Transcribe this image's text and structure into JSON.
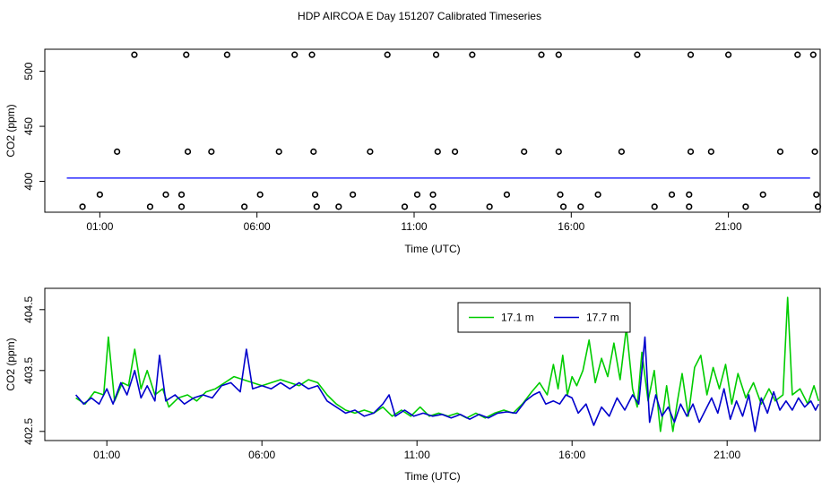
{
  "title": "HDP AIRCOA E  Day 151207  Calibrated Timeseries",
  "chart_data": [
    {
      "type": "scatter",
      "xlabel": "Time (UTC)",
      "ylabel": "CO2 (ppm)",
      "x_unit": "hours UTC",
      "xlim": [
        -0.75,
        23.92
      ],
      "ylim": [
        372,
        520
      ],
      "x_ticks": [
        {
          "value": 1,
          "label": "01:00"
        },
        {
          "value": 6,
          "label": "06:00"
        },
        {
          "value": 11,
          "label": "11:00"
        },
        {
          "value": 16,
          "label": "16:00"
        },
        {
          "value": 21,
          "label": "21:00"
        }
      ],
      "y_ticks": [
        {
          "value": 400,
          "label": "400"
        },
        {
          "value": 450,
          "label": "450"
        },
        {
          "value": 500,
          "label": "500"
        }
      ],
      "series_color": "#0000ff",
      "series_line": {
        "x_start": -0.05,
        "x_end": 23.6,
        "value": 403
      },
      "calibration_points": [
        [
          0.45,
          377
        ],
        [
          1.0,
          388
        ],
        [
          1.55,
          427
        ],
        [
          2.1,
          515
        ],
        [
          2.6,
          377
        ],
        [
          3.1,
          388
        ],
        [
          3.6,
          377
        ],
        [
          3.6,
          388
        ],
        [
          3.75,
          515
        ],
        [
          3.8,
          427
        ],
        [
          4.55,
          427
        ],
        [
          5.05,
          515
        ],
        [
          5.6,
          377
        ],
        [
          6.1,
          388
        ],
        [
          6.7,
          427
        ],
        [
          7.2,
          515
        ],
        [
          7.75,
          515
        ],
        [
          7.8,
          427
        ],
        [
          7.85,
          388
        ],
        [
          7.9,
          377
        ],
        [
          8.6,
          377
        ],
        [
          9.05,
          388
        ],
        [
          9.6,
          427
        ],
        [
          10.15,
          515
        ],
        [
          10.7,
          377
        ],
        [
          11.1,
          388
        ],
        [
          11.6,
          388
        ],
        [
          11.6,
          377
        ],
        [
          11.7,
          515
        ],
        [
          11.75,
          427
        ],
        [
          12.3,
          427
        ],
        [
          12.85,
          515
        ],
        [
          13.4,
          377
        ],
        [
          13.95,
          388
        ],
        [
          14.5,
          427
        ],
        [
          15.05,
          515
        ],
        [
          15.6,
          515
        ],
        [
          15.6,
          427
        ],
        [
          15.65,
          388
        ],
        [
          15.75,
          377
        ],
        [
          16.3,
          377
        ],
        [
          16.85,
          388
        ],
        [
          17.6,
          427
        ],
        [
          18.1,
          515
        ],
        [
          18.65,
          377
        ],
        [
          19.2,
          388
        ],
        [
          19.75,
          388
        ],
        [
          19.75,
          377
        ],
        [
          19.8,
          515
        ],
        [
          19.8,
          427
        ],
        [
          20.45,
          427
        ],
        [
          21.0,
          515
        ],
        [
          21.55,
          377
        ],
        [
          22.1,
          388
        ],
        [
          22.65,
          427
        ],
        [
          23.2,
          515
        ],
        [
          23.7,
          515
        ],
        [
          23.75,
          427
        ],
        [
          23.8,
          388
        ],
        [
          23.85,
          377
        ]
      ]
    },
    {
      "type": "line",
      "xlabel": "Time (UTC)",
      "ylabel": "CO2 (ppm)",
      "x_unit": "hours UTC",
      "xlim": [
        -1.0,
        24.0
      ],
      "ylim": [
        402.35,
        404.85
      ],
      "x_ticks": [
        {
          "value": 1,
          "label": "01:00"
        },
        {
          "value": 6,
          "label": "06:00"
        },
        {
          "value": 11,
          "label": "11:00"
        },
        {
          "value": 16,
          "label": "16:00"
        },
        {
          "value": 21,
          "label": "21:00"
        }
      ],
      "y_ticks": [
        {
          "value": 402.5,
          "label": "402.5"
        },
        {
          "value": 403.5,
          "label": "403.5"
        },
        {
          "value": 404.5,
          "label": "404.5"
        }
      ],
      "legend_position": "top-center",
      "series": [
        {
          "name": "17.1 m",
          "color": "#00cc00",
          "points": [
            [
              0.0,
              403.05
            ],
            [
              0.3,
              402.95
            ],
            [
              0.6,
              403.15
            ],
            [
              0.9,
              403.1
            ],
            [
              1.05,
              404.05
            ],
            [
              1.25,
              403.0
            ],
            [
              1.5,
              403.3
            ],
            [
              1.7,
              403.25
            ],
            [
              1.9,
              403.85
            ],
            [
              2.1,
              403.2
            ],
            [
              2.3,
              403.5
            ],
            [
              2.55,
              403.1
            ],
            [
              2.8,
              403.2
            ],
            [
              3.0,
              402.9
            ],
            [
              3.3,
              403.05
            ],
            [
              3.6,
              403.1
            ],
            [
              3.9,
              403.0
            ],
            [
              4.2,
              403.15
            ],
            [
              4.5,
              403.2
            ],
            [
              4.8,
              403.3
            ],
            [
              5.1,
              403.4
            ],
            [
              5.4,
              403.35
            ],
            [
              5.7,
              403.3
            ],
            [
              6.0,
              403.25
            ],
            [
              6.3,
              403.3
            ],
            [
              6.6,
              403.35
            ],
            [
              6.9,
              403.3
            ],
            [
              7.2,
              403.25
            ],
            [
              7.5,
              403.35
            ],
            [
              7.8,
              403.3
            ],
            [
              8.1,
              403.1
            ],
            [
              8.4,
              402.95
            ],
            [
              8.7,
              402.85
            ],
            [
              9.0,
              402.8
            ],
            [
              9.3,
              402.85
            ],
            [
              9.6,
              402.8
            ],
            [
              9.9,
              402.9
            ],
            [
              10.2,
              402.75
            ],
            [
              10.5,
              402.85
            ],
            [
              10.8,
              402.75
            ],
            [
              11.1,
              402.9
            ],
            [
              11.4,
              402.75
            ],
            [
              11.7,
              402.8
            ],
            [
              12.0,
              402.75
            ],
            [
              12.3,
              402.8
            ],
            [
              12.6,
              402.72
            ],
            [
              12.9,
              402.8
            ],
            [
              13.2,
              402.72
            ],
            [
              13.5,
              402.8
            ],
            [
              13.8,
              402.85
            ],
            [
              14.1,
              402.8
            ],
            [
              14.4,
              402.95
            ],
            [
              14.7,
              403.15
            ],
            [
              14.95,
              403.3
            ],
            [
              15.2,
              403.1
            ],
            [
              15.4,
              403.6
            ],
            [
              15.55,
              403.2
            ],
            [
              15.7,
              403.75
            ],
            [
              15.85,
              403.1
            ],
            [
              16.0,
              403.4
            ],
            [
              16.15,
              403.25
            ],
            [
              16.35,
              403.5
            ],
            [
              16.55,
              404.0
            ],
            [
              16.75,
              403.3
            ],
            [
              16.95,
              403.7
            ],
            [
              17.15,
              403.4
            ],
            [
              17.35,
              403.95
            ],
            [
              17.55,
              403.35
            ],
            [
              17.75,
              404.2
            ],
            [
              17.95,
              403.2
            ],
            [
              18.1,
              402.9
            ],
            [
              18.25,
              403.8
            ],
            [
              18.45,
              403.0
            ],
            [
              18.65,
              403.5
            ],
            [
              18.85,
              402.5
            ],
            [
              19.05,
              403.25
            ],
            [
              19.25,
              402.5
            ],
            [
              19.4,
              403.0
            ],
            [
              19.55,
              403.45
            ],
            [
              19.75,
              402.75
            ],
            [
              19.95,
              403.55
            ],
            [
              20.15,
              403.75
            ],
            [
              20.35,
              403.1
            ],
            [
              20.55,
              403.55
            ],
            [
              20.75,
              403.2
            ],
            [
              20.95,
              403.6
            ],
            [
              21.15,
              402.95
            ],
            [
              21.35,
              403.45
            ],
            [
              21.6,
              403.05
            ],
            [
              21.85,
              403.3
            ],
            [
              22.1,
              402.95
            ],
            [
              22.35,
              403.2
            ],
            [
              22.55,
              403.0
            ],
            [
              22.8,
              403.1
            ],
            [
              22.95,
              404.7
            ],
            [
              23.1,
              403.1
            ],
            [
              23.35,
              403.2
            ],
            [
              23.6,
              402.95
            ],
            [
              23.8,
              403.25
            ],
            [
              23.95,
              403.0
            ]
          ]
        },
        {
          "name": "17.7 m",
          "color": "#0000cc",
          "points": [
            [
              0.0,
              403.1
            ],
            [
              0.25,
              402.95
            ],
            [
              0.5,
              403.05
            ],
            [
              0.75,
              402.95
            ],
            [
              1.0,
              403.2
            ],
            [
              1.2,
              402.95
            ],
            [
              1.45,
              403.3
            ],
            [
              1.65,
              403.1
            ],
            [
              1.9,
              403.5
            ],
            [
              2.1,
              403.05
            ],
            [
              2.3,
              403.25
            ],
            [
              2.55,
              403.0
            ],
            [
              2.7,
              403.75
            ],
            [
              2.9,
              403.0
            ],
            [
              3.2,
              403.1
            ],
            [
              3.5,
              402.95
            ],
            [
              3.8,
              403.05
            ],
            [
              4.1,
              403.1
            ],
            [
              4.4,
              403.05
            ],
            [
              4.7,
              403.25
            ],
            [
              5.0,
              403.3
            ],
            [
              5.3,
              403.15
            ],
            [
              5.5,
              403.85
            ],
            [
              5.7,
              403.2
            ],
            [
              6.0,
              403.25
            ],
            [
              6.3,
              403.2
            ],
            [
              6.6,
              403.3
            ],
            [
              6.9,
              403.2
            ],
            [
              7.2,
              403.3
            ],
            [
              7.5,
              403.2
            ],
            [
              7.8,
              403.25
            ],
            [
              8.1,
              403.0
            ],
            [
              8.4,
              402.9
            ],
            [
              8.7,
              402.8
            ],
            [
              9.0,
              402.85
            ],
            [
              9.3,
              402.75
            ],
            [
              9.6,
              402.8
            ],
            [
              9.9,
              402.95
            ],
            [
              10.1,
              403.1
            ],
            [
              10.3,
              402.75
            ],
            [
              10.6,
              402.85
            ],
            [
              10.9,
              402.75
            ],
            [
              11.2,
              402.8
            ],
            [
              11.5,
              402.75
            ],
            [
              11.8,
              402.78
            ],
            [
              12.1,
              402.72
            ],
            [
              12.4,
              402.78
            ],
            [
              12.7,
              402.7
            ],
            [
              13.0,
              402.78
            ],
            [
              13.3,
              402.72
            ],
            [
              13.6,
              402.8
            ],
            [
              13.9,
              402.82
            ],
            [
              14.2,
              402.8
            ],
            [
              14.5,
              403.0
            ],
            [
              14.75,
              403.1
            ],
            [
              14.95,
              403.15
            ],
            [
              15.15,
              402.95
            ],
            [
              15.4,
              403.0
            ],
            [
              15.6,
              402.95
            ],
            [
              15.8,
              403.1
            ],
            [
              16.0,
              403.05
            ],
            [
              16.2,
              402.8
            ],
            [
              16.45,
              402.95
            ],
            [
              16.7,
              402.6
            ],
            [
              16.95,
              402.9
            ],
            [
              17.2,
              402.75
            ],
            [
              17.45,
              403.05
            ],
            [
              17.7,
              402.85
            ],
            [
              17.95,
              403.1
            ],
            [
              18.15,
              402.95
            ],
            [
              18.35,
              404.05
            ],
            [
              18.5,
              402.65
            ],
            [
              18.7,
              403.1
            ],
            [
              18.9,
              402.75
            ],
            [
              19.1,
              402.9
            ],
            [
              19.3,
              402.65
            ],
            [
              19.5,
              402.95
            ],
            [
              19.7,
              402.75
            ],
            [
              19.9,
              402.95
            ],
            [
              20.1,
              402.65
            ],
            [
              20.3,
              402.85
            ],
            [
              20.5,
              403.05
            ],
            [
              20.7,
              402.8
            ],
            [
              20.9,
              403.2
            ],
            [
              21.1,
              402.7
            ],
            [
              21.3,
              403.0
            ],
            [
              21.5,
              402.75
            ],
            [
              21.7,
              403.1
            ],
            [
              21.9,
              402.5
            ],
            [
              22.1,
              403.05
            ],
            [
              22.3,
              402.8
            ],
            [
              22.5,
              403.15
            ],
            [
              22.7,
              402.85
            ],
            [
              22.9,
              403.0
            ],
            [
              23.1,
              402.85
            ],
            [
              23.3,
              403.05
            ],
            [
              23.5,
              402.9
            ],
            [
              23.7,
              403.0
            ],
            [
              23.85,
              402.85
            ],
            [
              23.95,
              402.95
            ]
          ]
        }
      ]
    }
  ]
}
